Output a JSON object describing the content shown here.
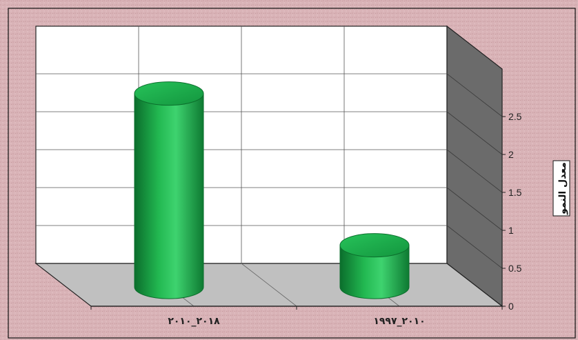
{
  "chart_data": {
    "type": "bar",
    "style": "3d-cylinder",
    "categories": [
      "٢٠١٨_٢٠١٠",
      "٢٠١٠_١٩٩٧"
    ],
    "values": [
      2.55,
      0.55
    ],
    "ylabel": "معدل النمو",
    "ylim": [
      0,
      2.5
    ],
    "yticks": [
      "0",
      "0.5",
      "1",
      "1.5",
      "2",
      "2.5"
    ],
    "y_axis_side": "right",
    "grid": true,
    "legend": "none",
    "colors": {
      "bar": "#1aa84a",
      "bar_dark": "#0b6e2c",
      "bar_light": "#3ed36f",
      "wall": "#ffffff",
      "side_wall": "#6b6b6b",
      "floor": "#c0c0c0",
      "background": "#d8b4b8"
    }
  }
}
